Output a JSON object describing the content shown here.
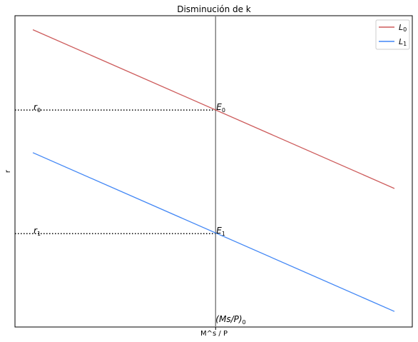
{
  "chart_data": {
    "type": "line",
    "title": "Disminución de k",
    "xlabel": "M^s / P",
    "ylabel": "r",
    "xlim": [
      0,
      10
    ],
    "ylim": [
      0,
      10
    ],
    "grid": false,
    "legend_placement": "top-right",
    "colors": {
      "L0": "#cd5c5c",
      "L1": "#4287f5",
      "vertical": "#808080",
      "dotted": "#000000"
    },
    "series": [
      {
        "name": "L",
        "subscript": "0",
        "x": [
          0.45,
          9.55
        ],
        "y": [
          9.55,
          4.45
        ]
      },
      {
        "name": "L",
        "subscript": "1",
        "x": [
          0.45,
          9.55
        ],
        "y": [
          5.6,
          0.5
        ]
      }
    ],
    "vertical_line": {
      "x": 5.05,
      "label_main": "(Ms/P)",
      "label_sub": "0"
    },
    "annotations": [
      {
        "main": "r",
        "sub": "0",
        "y": 6.97
      },
      {
        "main": "r",
        "sub": "1",
        "y": 3.0
      },
      {
        "main": "E",
        "sub": "0",
        "y": 6.97
      },
      {
        "main": "E",
        "sub": "1",
        "y": 3.0
      }
    ]
  }
}
